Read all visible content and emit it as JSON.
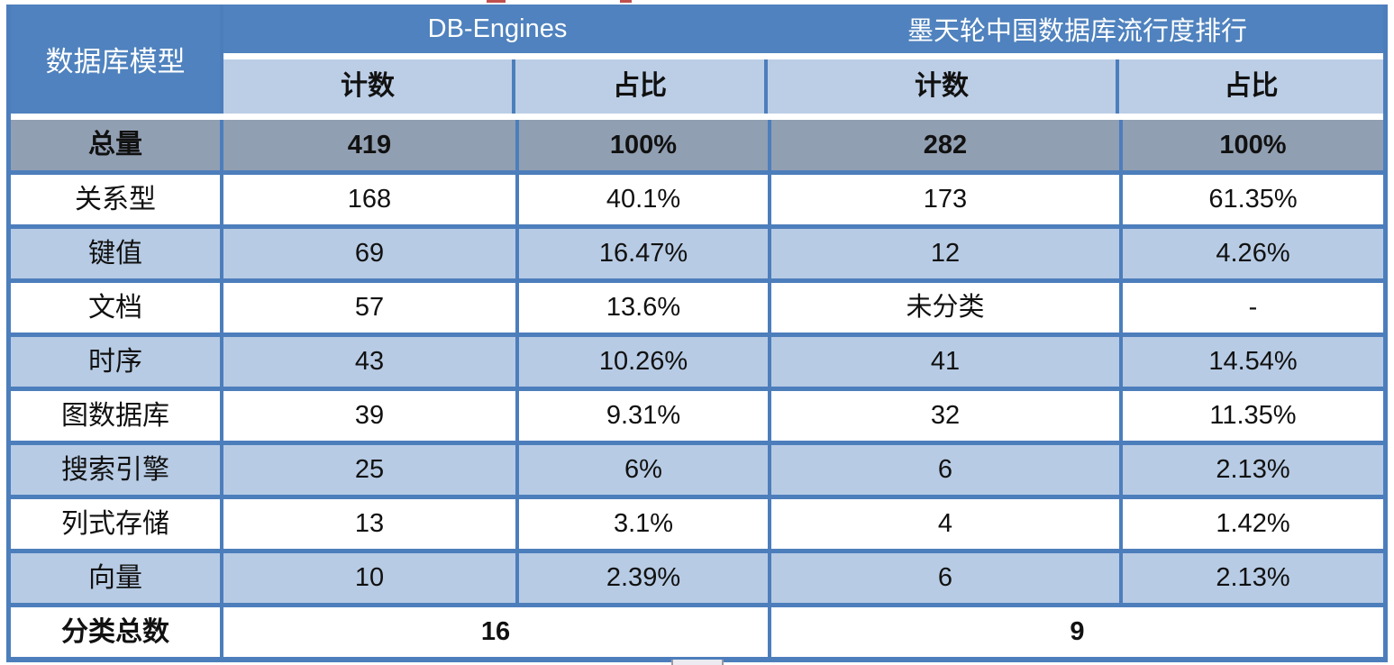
{
  "chart_data": {
    "type": "table",
    "title": "",
    "corner_header": "数据库模型",
    "column_groups": [
      {
        "label": "DB-Engines"
      },
      {
        "label": "墨天轮中国数据库流行度排行"
      }
    ],
    "sub_headers": [
      "计数",
      "占比",
      "计数",
      "占比"
    ],
    "rows": [
      {
        "label": "总量",
        "db_count": "419",
        "db_pct": "100%",
        "mt_count": "282",
        "mt_pct": "100%"
      },
      {
        "label": "关系型",
        "db_count": "168",
        "db_pct": "40.1%",
        "mt_count": "173",
        "mt_pct": "61.35%"
      },
      {
        "label": "键值",
        "db_count": "69",
        "db_pct": "16.47%",
        "mt_count": "12",
        "mt_pct": "4.26%"
      },
      {
        "label": "文档",
        "db_count": "57",
        "db_pct": "13.6%",
        "mt_count": "未分类",
        "mt_pct": "-"
      },
      {
        "label": "时序",
        "db_count": "43",
        "db_pct": "10.26%",
        "mt_count": "41",
        "mt_pct": "14.54%"
      },
      {
        "label": "图数据库",
        "db_count": "39",
        "db_pct": "9.31%",
        "mt_count": "32",
        "mt_pct": "11.35%"
      },
      {
        "label": "搜索引擎",
        "db_count": "25",
        "db_pct": "6%",
        "mt_count": "6",
        "mt_pct": "2.13%"
      },
      {
        "label": "列式存储",
        "db_count": "13",
        "db_pct": "3.1%",
        "mt_count": "4",
        "mt_pct": "1.42%"
      },
      {
        "label": "向量",
        "db_count": "10",
        "db_pct": "2.39%",
        "mt_count": "6",
        "mt_pct": "2.13%"
      }
    ],
    "footer": {
      "label": "分类总数",
      "db_total": "16",
      "mt_total": "9"
    },
    "layout_hints": {
      "banding": "alternating white / light-blue data rows",
      "total_row_style": "gray background, bold",
      "grid": "blue cell borders"
    }
  },
  "colors": {
    "header_blue": "#4f82be",
    "subheader_blue": "#bccee6",
    "band_blue": "#b7cbe4",
    "total_gray": "#919fb2",
    "border_blue": "#4d7ebc",
    "artifact_red": "#c0504d"
  }
}
